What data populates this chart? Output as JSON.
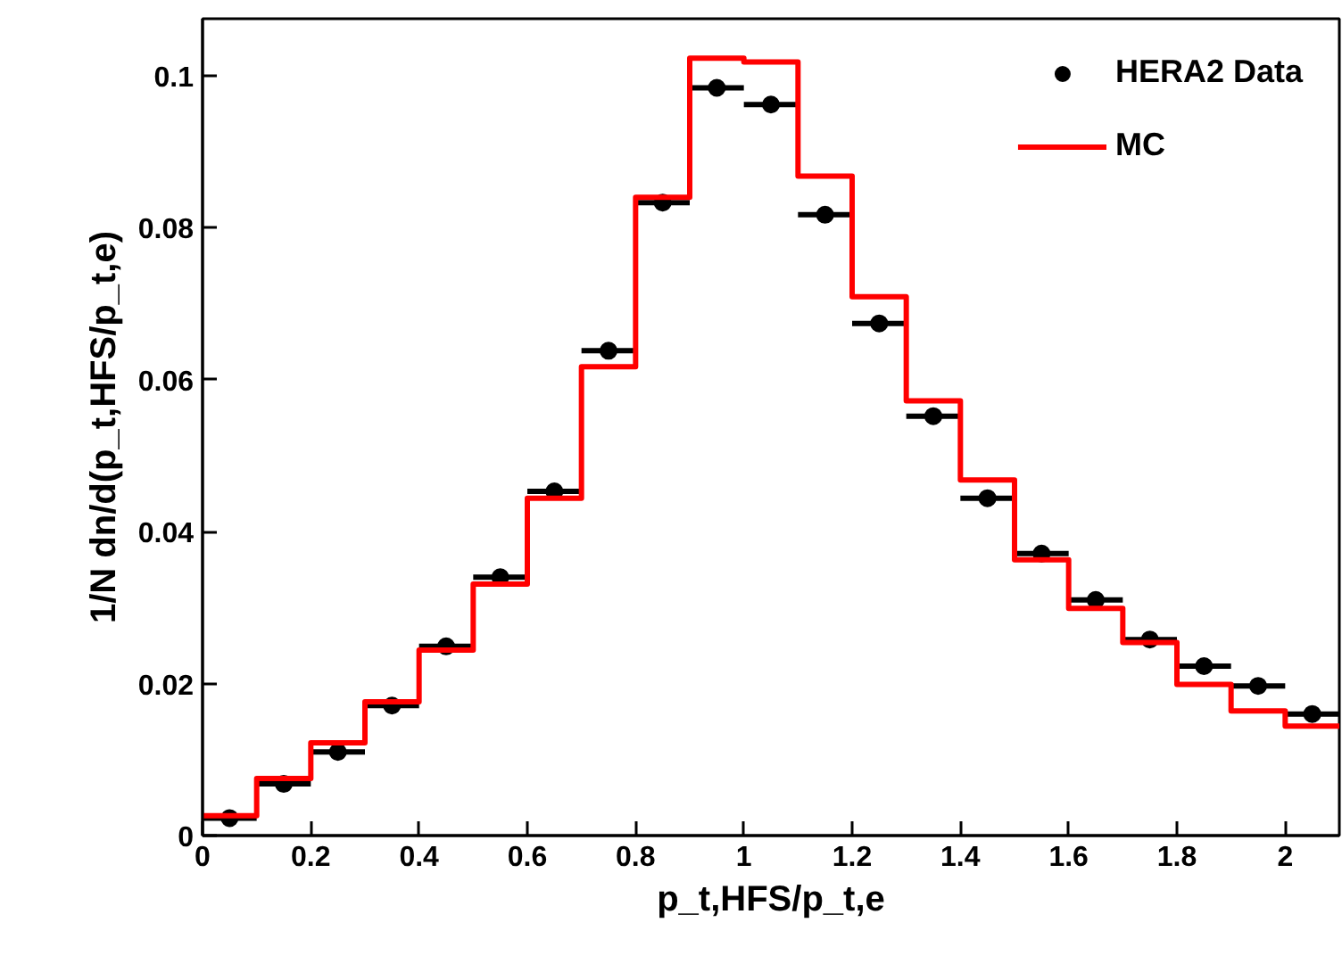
{
  "chart_data": {
    "type": "histogram",
    "xlabel": "p_t,HFS/p_t,e",
    "ylabel": "1/N dn/d(p_t,HFS/p_t,e)",
    "bins": [
      0,
      0.1,
      0.2,
      0.3,
      0.4,
      0.5,
      0.6,
      0.7,
      0.8,
      0.9,
      1.0,
      1.1,
      1.2,
      1.3,
      1.4,
      1.5,
      1.6,
      1.7,
      1.8,
      1.9,
      2.0,
      2.1
    ],
    "xlim": [
      0,
      2.1
    ],
    "ylim": [
      0,
      0.1075
    ],
    "xticks": [
      0,
      0.2,
      0.4,
      0.6,
      0.8,
      1,
      1.2,
      1.4,
      1.6,
      1.8,
      2
    ],
    "yticks": [
      0,
      0.02,
      0.04,
      0.06,
      0.08,
      0.1
    ],
    "grid": false,
    "legend": "top right",
    "series": [
      {
        "type": "scatter",
        "name": "HERA2 Data",
        "color": "#000000",
        "marker": "circle",
        "x": [
          0.05,
          0.15,
          0.25,
          0.35,
          0.45,
          0.55,
          0.65,
          0.75,
          0.85,
          0.95,
          1.05,
          1.15,
          1.25,
          1.35,
          1.45,
          1.55,
          1.65,
          1.75,
          1.85,
          1.95,
          2.05
        ],
        "values": [
          0.0023,
          0.0068,
          0.011,
          0.0171,
          0.0249,
          0.034,
          0.0453,
          0.0638,
          0.0833,
          0.0984,
          0.0962,
          0.0817,
          0.0674,
          0.0552,
          0.0444,
          0.0371,
          0.031,
          0.0258,
          0.0223,
          0.0197,
          0.016
        ],
        "xerrors": [
          0.05,
          0.05,
          0.05,
          0.05,
          0.05,
          0.05,
          0.05,
          0.05,
          0.05,
          0.05,
          0.05,
          0.05,
          0.05,
          0.05,
          0.05,
          0.05,
          0.05,
          0.05,
          0.05,
          0.05,
          0.05
        ]
      },
      {
        "type": "histogram",
        "name": "MC",
        "color": "#ff0000",
        "values": [
          0.0026,
          0.0075,
          0.0122,
          0.0176,
          0.0244,
          0.0331,
          0.0444,
          0.0617,
          0.084,
          0.1023,
          0.1018,
          0.0868,
          0.0709,
          0.0572,
          0.0468,
          0.0363,
          0.0299,
          0.0254,
          0.0199,
          0.0164,
          0.0144
        ]
      }
    ]
  }
}
